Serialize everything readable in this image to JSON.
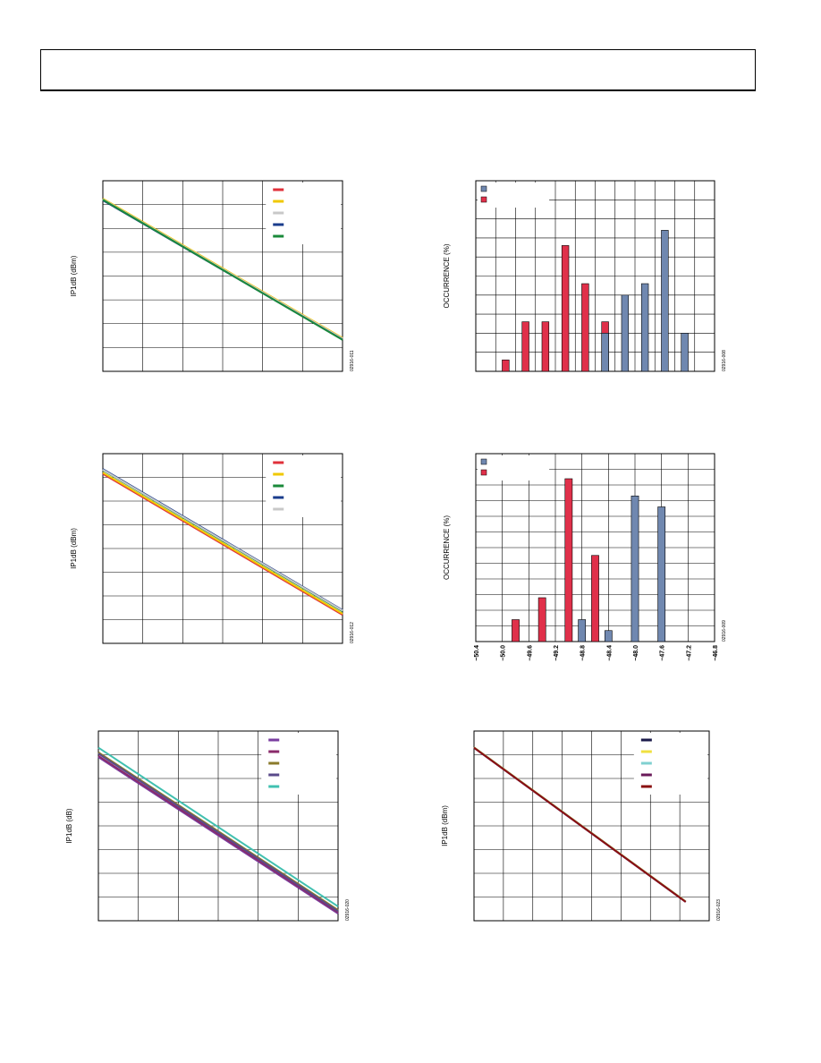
{
  "page": {
    "header_text": ""
  },
  "chart_data": [
    {
      "id": "c1",
      "type": "line",
      "ylabel": "IP1dB (dBm)",
      "figure_id": "02916-011",
      "grid": true,
      "xlim": [
        0,
        6
      ],
      "ylim": [
        0,
        8
      ],
      "legend": "top-right",
      "series": [
        {
          "color": "#e0303a",
          "x": [
            0,
            6
          ],
          "y": [
            7.2,
            1.35
          ]
        },
        {
          "color": "#f0c800",
          "x": [
            0,
            6
          ],
          "y": [
            7.25,
            1.4
          ]
        },
        {
          "color": "#c8c8c8",
          "x": [
            0,
            6
          ],
          "y": [
            7.22,
            1.37
          ]
        },
        {
          "color": "#1a3c8c",
          "x": [
            0,
            6
          ],
          "y": [
            7.18,
            1.33
          ]
        },
        {
          "color": "#1a8a3a",
          "x": [
            0,
            6
          ],
          "y": [
            7.2,
            1.32
          ]
        }
      ]
    },
    {
      "id": "c2",
      "type": "bar",
      "ylabel": "OCCURRENCE (%)",
      "figure_id": "02916-008",
      "grid": true,
      "xlim": [
        0,
        12
      ],
      "ylim": [
        0,
        10
      ],
      "legend": "top-left",
      "series": [
        {
          "color": "#e0304a",
          "x": [
            1.5,
            2.5,
            3.5,
            4.5,
            5.5,
            6.5
          ],
          "values": [
            0.6,
            2.6,
            2.6,
            6.6,
            4.6,
            2.6
          ]
        },
        {
          "color": "#7088b0",
          "x": [
            6.5,
            7.5,
            8.5,
            9.5,
            10.5
          ],
          "values": [
            2.0,
            4.0,
            4.6,
            7.4,
            2.0
          ]
        }
      ],
      "bar_width": 0.35
    },
    {
      "id": "c3",
      "type": "line",
      "ylabel": "IP1dB (dBm)",
      "figure_id": "02916-012",
      "grid": true,
      "xlim": [
        0,
        6
      ],
      "ylim": [
        0,
        8
      ],
      "legend": "top-right",
      "series": [
        {
          "color": "#e0303a",
          "x": [
            0,
            6
          ],
          "y": [
            7.15,
            1.2
          ]
        },
        {
          "color": "#f0c800",
          "x": [
            0,
            6
          ],
          "y": [
            7.2,
            1.25
          ]
        },
        {
          "color": "#1a8a3a",
          "x": [
            0,
            6
          ],
          "y": [
            7.3,
            1.35
          ]
        },
        {
          "color": "#1a3c8c",
          "x": [
            0,
            6
          ],
          "y": [
            7.35,
            1.4
          ]
        },
        {
          "color": "#c8c8c8",
          "x": [
            0,
            6
          ],
          "y": [
            7.32,
            1.38
          ]
        }
      ]
    },
    {
      "id": "c4",
      "type": "bar",
      "ylabel": "OCCURRENCE (%)",
      "figure_id": "02916-009",
      "grid": true,
      "xlim": [
        -50.4,
        -46.8
      ],
      "ylim": [
        0,
        12
      ],
      "legend": "top-left",
      "xticks": [
        "−50.4",
        "−50.0",
        "−49.6",
        "−49.2",
        "−48.8",
        "−48.4",
        "−48.0",
        "−47.6",
        "−47.2",
        "−46.8"
      ],
      "series": [
        {
          "color": "#e0304a",
          "x": [
            -49.8,
            -49.4,
            -49.0,
            -48.6
          ],
          "values": [
            1.4,
            2.8,
            10.4,
            5.5
          ]
        },
        {
          "color": "#7088b0",
          "x": [
            -48.8,
            -48.4,
            -48.0,
            -47.6
          ],
          "values": [
            1.4,
            0.7,
            9.3,
            8.6
          ]
        }
      ],
      "bar_width": 0.11
    },
    {
      "id": "c5",
      "type": "line",
      "ylabel": "IP1dB (dB)",
      "figure_id": "02916-020",
      "grid": true,
      "xlim": [
        0,
        6
      ],
      "ylim": [
        0,
        8
      ],
      "legend": "top-right",
      "series": [
        {
          "color": "#7a3ea0",
          "x": [
            0,
            6
          ],
          "y": [
            6.9,
            0.3
          ]
        },
        {
          "color": "#8a2a6a",
          "x": [
            0,
            6
          ],
          "y": [
            6.95,
            0.35
          ]
        },
        {
          "color": "#8a7a2a",
          "x": [
            0,
            6
          ],
          "y": [
            7.1,
            0.45
          ]
        },
        {
          "color": "#5a4a8a",
          "x": [
            0,
            6
          ],
          "y": [
            7.05,
            0.4
          ]
        },
        {
          "color": "#40c0b0",
          "x": [
            0,
            6
          ],
          "y": [
            7.3,
            0.6
          ]
        }
      ]
    },
    {
      "id": "c6",
      "type": "line",
      "ylabel": "IP1dB (dBm)",
      "figure_id": "02916-023",
      "grid": true,
      "xlim": [
        0,
        8
      ],
      "ylim": [
        0,
        8
      ],
      "legend": "top-right",
      "series": [
        {
          "color": "#1a1a4a",
          "x": [
            0,
            7.2
          ],
          "y": [
            7.3,
            0.8
          ]
        },
        {
          "color": "#f0e040",
          "x": [
            0,
            7.2
          ],
          "y": [
            7.32,
            0.82
          ]
        },
        {
          "color": "#80d0d0",
          "x": [
            0,
            7.2
          ],
          "y": [
            7.31,
            0.81
          ]
        },
        {
          "color": "#6a1a5a",
          "x": [
            0,
            7.2
          ],
          "y": [
            7.29,
            0.79
          ]
        },
        {
          "color": "#8a1010",
          "x": [
            0,
            7.2
          ],
          "y": [
            7.3,
            0.8
          ]
        }
      ]
    }
  ]
}
